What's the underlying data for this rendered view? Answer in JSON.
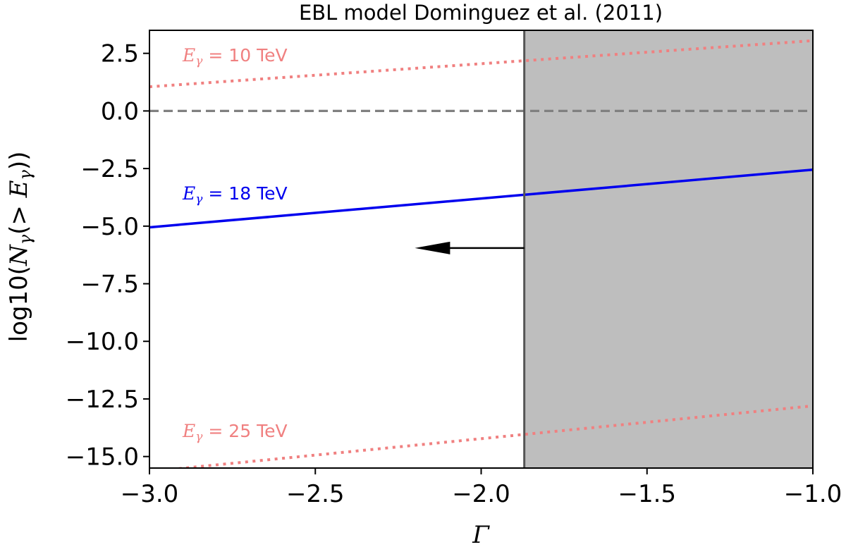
{
  "chart_data": {
    "type": "line",
    "title": "EBL model Dominguez et al. (2011)",
    "xlabel": "Γ",
    "ylabel": {
      "prefix": "log10(",
      "n": "N",
      "n_sub": "γ",
      "mid": "(> ",
      "e": "E",
      "e_sub": "γ",
      "suffix": "))"
    },
    "xlim": [
      -3.0,
      -1.0
    ],
    "ylim": [
      -15.5,
      3.5
    ],
    "xticks": [
      -3.0,
      -2.5,
      -2.0,
      -1.5,
      -1.0
    ],
    "xtick_labels": [
      "−3.0",
      "−2.5",
      "−2.0",
      "−1.5",
      "−1.0"
    ],
    "yticks": [
      2.5,
      0.0,
      -2.5,
      -5.0,
      -7.5,
      -10.0,
      -12.5,
      -15.0
    ],
    "ytick_labels": [
      "2.5",
      "0.0",
      "−2.5",
      "−5.0",
      "−7.5",
      "−10.0",
      "−12.5",
      "−15.0"
    ],
    "grid": false,
    "series": [
      {
        "x": [
          -3.0,
          -1.0
        ],
        "y": [
          1.05,
          3.05
        ],
        "style": "dotted",
        "color": "#f08080",
        "label": {
          "var": "E",
          "sub": "γ",
          "text": " = 10 TeV"
        }
      },
      {
        "x": [
          -3.0,
          -1.0
        ],
        "y": [
          -5.05,
          -2.55
        ],
        "style": "solid",
        "color": "#0000ee",
        "label": {
          "var": "E",
          "sub": "γ",
          "text": " = 18 TeV"
        }
      },
      {
        "x": [
          -3.0,
          -1.0
        ],
        "y": [
          -15.65,
          -12.8
        ],
        "style": "dotted",
        "color": "#f08080",
        "label": {
          "var": "E",
          "sub": "γ",
          "text": " = 25 TeV"
        }
      }
    ],
    "hline": {
      "y": 0.0,
      "style": "dashed",
      "color": "#808080"
    },
    "vline": {
      "x": -1.87,
      "color": "#555555"
    },
    "shaded_region": {
      "x": [
        -1.87,
        -1.0
      ],
      "color": "#bebebe"
    },
    "arrow": {
      "from": [
        -1.87,
        -5.95
      ],
      "to": [
        -2.2,
        -5.95
      ],
      "color": "#000000"
    },
    "annotation_positions": [
      {
        "x": -2.9,
        "y": 2.15
      },
      {
        "x": -2.9,
        "y": -3.85
      },
      {
        "x": -2.9,
        "y": -14.15
      }
    ]
  }
}
